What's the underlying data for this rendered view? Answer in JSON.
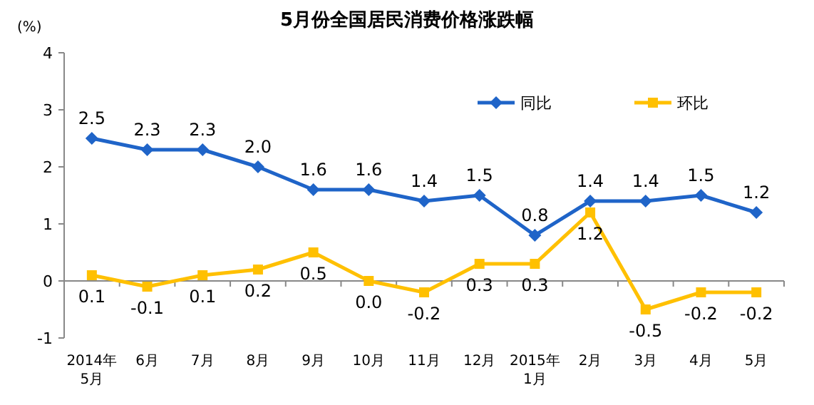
{
  "chart_data": {
    "type": "line",
    "title": "5月份全国居民消费价格涨跌幅",
    "ylabel": "(%)",
    "categories": [
      "2014年\n5月",
      "6月",
      "7月",
      "8月",
      "9月",
      "10月",
      "11月",
      "12月",
      "2015年\n1月",
      "2月",
      "3月",
      "4月",
      "5月"
    ],
    "ylim": [
      -1,
      4
    ],
    "yticks": [
      -1,
      0,
      1,
      2,
      3,
      4
    ],
    "legend": "top right",
    "series": [
      {
        "name": "同比",
        "color": "#1f64c8",
        "marker": "diamond",
        "values": [
          2.5,
          2.3,
          2.3,
          2.0,
          1.6,
          1.6,
          1.4,
          1.5,
          0.8,
          1.4,
          1.4,
          1.5,
          1.2
        ],
        "value_labels": [
          "2.5",
          "2.3",
          "2.3",
          "2.0",
          "1.6",
          "1.6",
          "1.4",
          "1.5",
          "0.8",
          "1.4",
          "1.4",
          "1.5",
          "1.2"
        ]
      },
      {
        "name": "环比",
        "color": "#ffc000",
        "marker": "square",
        "values": [
          0.1,
          -0.1,
          0.1,
          0.2,
          0.5,
          0.0,
          -0.2,
          0.3,
          0.3,
          1.2,
          -0.5,
          -0.2,
          -0.2
        ],
        "value_labels": [
          "0.1",
          "-0.1",
          "0.1",
          "0.2",
          "0.5",
          "0.0",
          "-0.2",
          "0.3",
          "0.3",
          "1.2",
          "-0.5",
          "-0.2",
          "-0.2"
        ]
      }
    ]
  }
}
